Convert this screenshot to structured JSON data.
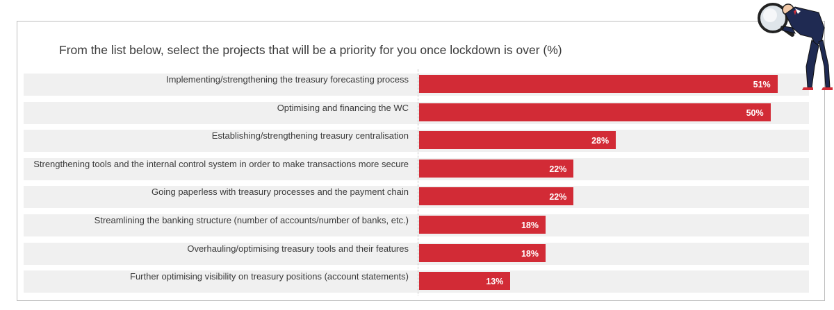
{
  "chart_data": {
    "type": "bar",
    "orientation": "horizontal",
    "title": "From the list below, select the projects that will be a priority for you once lockdown is over (%)",
    "categories": [
      "Implementing/strengthening the treasury forecasting process",
      "Optimising and financing the WC",
      "Establishing/strengthening treasury centralisation",
      "Strengthening tools and the internal control system in order to make transactions more secure",
      "Going paperless with treasury processes and the payment chain",
      "Streamlining the banking structure (number of accounts/number of banks, etc.)",
      "Overhauling/optimising treasury tools and their features",
      "Further optimising visibility on treasury positions (account statements)"
    ],
    "values": [
      51,
      50,
      28,
      22,
      22,
      18,
      18,
      13
    ],
    "value_labels": [
      "51%",
      "50%",
      "28%",
      "22%",
      "22%",
      "18%",
      "18%",
      "13%"
    ],
    "xlim": [
      0,
      54
    ],
    "grid": false,
    "legend": "none",
    "colors": {
      "bar": "#d22b36",
      "band": "#f0f0f0",
      "label_text": "#3a3a3a",
      "value_text": "#ffffff"
    }
  },
  "decoration": {
    "icon": "businessman-magnifier-icon"
  }
}
